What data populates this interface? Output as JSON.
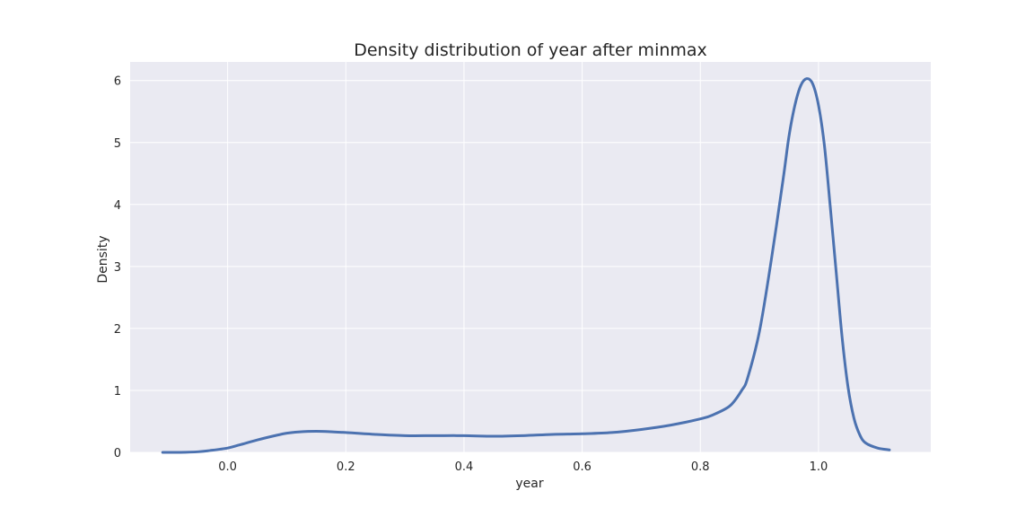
{
  "chart_data": {
    "type": "line",
    "title": "Density distribution of year after minmax",
    "xlabel": "year",
    "ylabel": "Density",
    "xlim": [
      -0.165,
      1.19
    ],
    "ylim": [
      0,
      6.3
    ],
    "xticks": [
      0.0,
      0.2,
      0.4,
      0.6,
      0.8,
      1.0
    ],
    "yticks": [
      0,
      1,
      2,
      3,
      4,
      5,
      6
    ],
    "xtick_labels": [
      "0.0",
      "0.2",
      "0.4",
      "0.6",
      "0.8",
      "1.0"
    ],
    "ytick_labels": [
      "0",
      "1",
      "2",
      "3",
      "4",
      "5",
      "6"
    ],
    "grid": true,
    "background_color": "#eaeaf2",
    "grid_color": "#ffffff",
    "line_color": "#4c72b0",
    "series": [
      {
        "x": [
          -0.11,
          -0.08,
          -0.05,
          -0.03,
          0.0,
          0.02,
          0.05,
          0.08,
          0.1,
          0.12,
          0.15,
          0.18,
          0.2,
          0.25,
          0.3,
          0.35,
          0.4,
          0.45,
          0.5,
          0.55,
          0.6,
          0.65,
          0.7,
          0.75,
          0.8,
          0.82,
          0.85,
          0.87,
          0.88,
          0.9,
          0.92,
          0.94,
          0.95,
          0.96,
          0.97,
          0.98,
          0.99,
          1.0,
          1.01,
          1.02,
          1.03,
          1.04,
          1.05,
          1.06,
          1.07,
          1.08,
          1.1,
          1.12
        ],
        "y": [
          0.0,
          0.0,
          0.01,
          0.03,
          0.07,
          0.12,
          0.2,
          0.27,
          0.31,
          0.33,
          0.34,
          0.33,
          0.32,
          0.29,
          0.27,
          0.27,
          0.27,
          0.26,
          0.27,
          0.29,
          0.3,
          0.32,
          0.37,
          0.44,
          0.54,
          0.6,
          0.75,
          1.0,
          1.2,
          1.95,
          3.1,
          4.4,
          5.1,
          5.6,
          5.92,
          6.03,
          5.95,
          5.6,
          4.95,
          3.95,
          2.9,
          1.85,
          1.05,
          0.55,
          0.28,
          0.15,
          0.07,
          0.04
        ]
      }
    ]
  }
}
